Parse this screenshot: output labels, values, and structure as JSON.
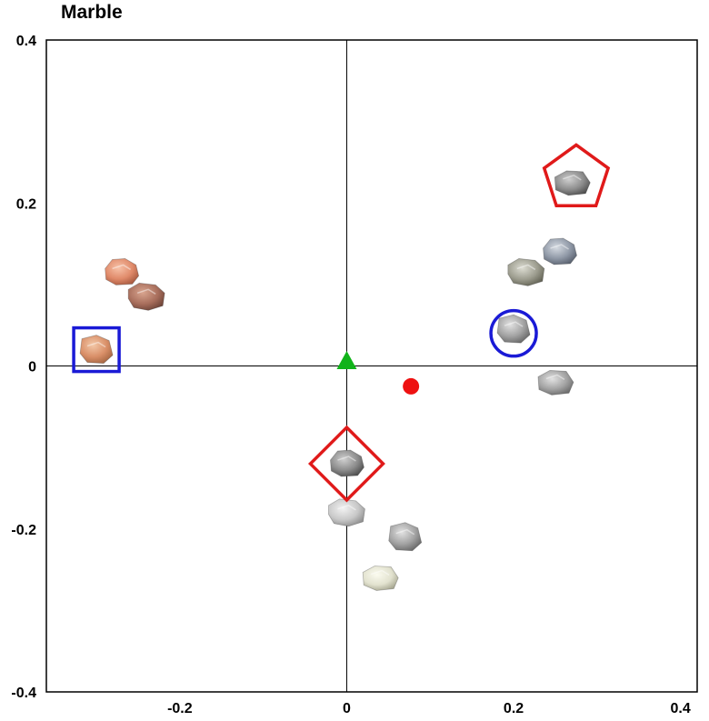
{
  "chart_data": {
    "type": "scatter",
    "title": "Marble",
    "xlabel": "",
    "ylabel": "",
    "xlim": [
      -0.36,
      0.42
    ],
    "ylim": [
      -0.4,
      0.4
    ],
    "x_ticks": [
      -0.2,
      0,
      0.2,
      0.4
    ],
    "y_ticks": [
      0.4,
      0.2,
      0,
      -0.2,
      -0.4
    ],
    "x_tick_labels": [
      "-0.2",
      "0",
      "0.2",
      "0.4"
    ],
    "y_tick_labels": [
      "0.4",
      "0.2",
      "0",
      "-0.2",
      "-0.4"
    ],
    "grid": false,
    "zero_lines": true,
    "stone_points": [
      {
        "x": -0.27,
        "y": 0.115,
        "tone": "pink"
      },
      {
        "x": -0.24,
        "y": 0.085,
        "tone": "brown"
      },
      {
        "x": -0.3,
        "y": 0.02,
        "tone": "orange"
      },
      {
        "x": 0.27,
        "y": 0.225,
        "tone": "gray-dark"
      },
      {
        "x": 0.255,
        "y": 0.14,
        "tone": "gray-blue"
      },
      {
        "x": 0.215,
        "y": 0.115,
        "tone": "gray-green"
      },
      {
        "x": 0.2,
        "y": 0.045,
        "tone": "gray-mid"
      },
      {
        "x": 0.25,
        "y": -0.02,
        "tone": "gray-mid"
      },
      {
        "x": 0.0,
        "y": -0.12,
        "tone": "gray-dark"
      },
      {
        "x": 0.0,
        "y": -0.18,
        "tone": "gray-light"
      },
      {
        "x": 0.07,
        "y": -0.21,
        "tone": "gray-mid"
      },
      {
        "x": 0.04,
        "y": -0.26,
        "tone": "cream"
      }
    ],
    "markers": [
      {
        "shape": "pentagon",
        "x": 0.275,
        "y": 0.23,
        "color": "#e01a1a"
      },
      {
        "shape": "circle-outline",
        "x": 0.2,
        "y": 0.04,
        "color": "#1a1ad6"
      },
      {
        "shape": "square-outline",
        "x": -0.3,
        "y": 0.02,
        "color": "#1a1ad6"
      },
      {
        "shape": "diamond",
        "x": 0.0,
        "y": -0.12,
        "color": "#e01a1a"
      },
      {
        "shape": "triangle-filled",
        "x": 0.0,
        "y": 0.005,
        "color": "#11b31a"
      },
      {
        "shape": "dot-filled",
        "x": 0.077,
        "y": -0.025,
        "color": "#ee1111"
      }
    ],
    "colors": {
      "red": "#e01a1a",
      "blue": "#1a1ad6",
      "green": "#11b31a"
    }
  }
}
